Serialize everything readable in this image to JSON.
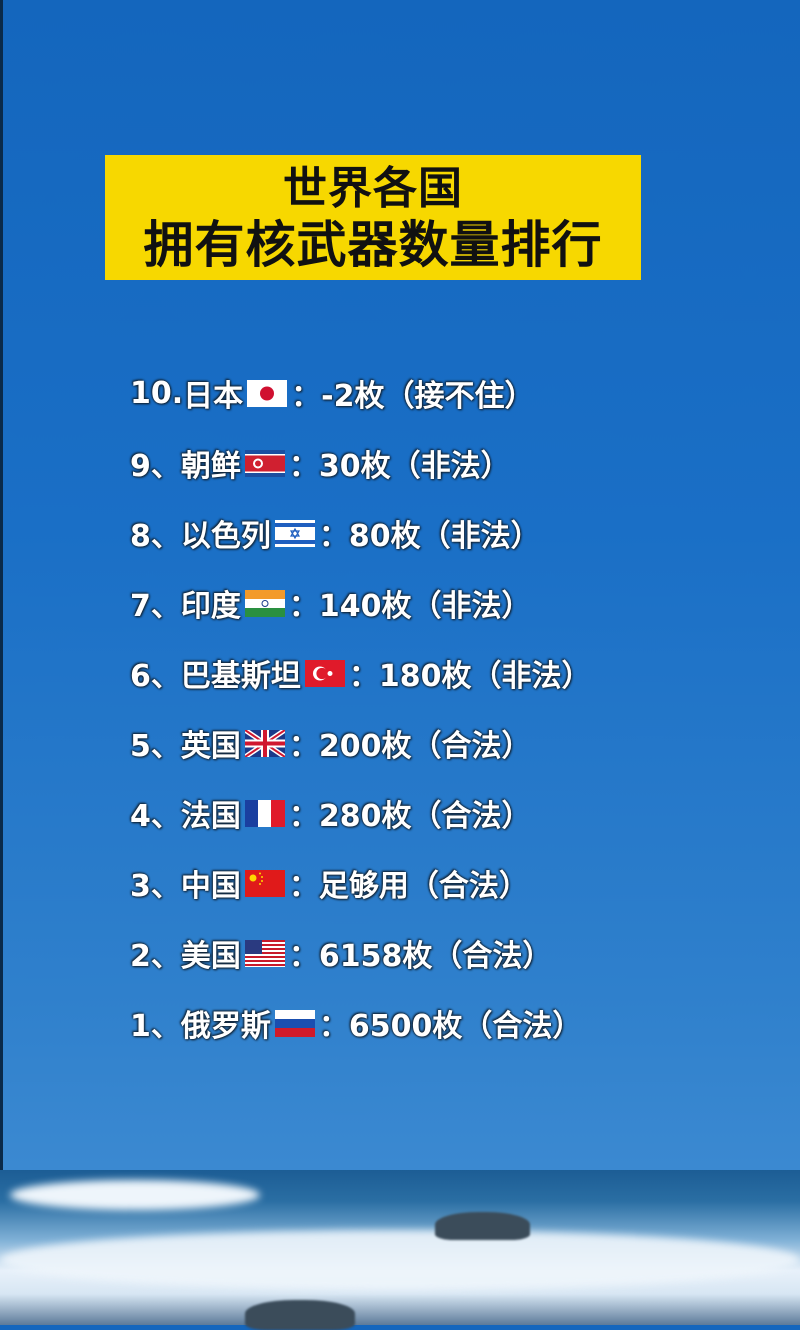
{
  "title": {
    "line1": "世界各国",
    "line2": "拥有核武器数量排行"
  },
  "colors": {
    "background": "#1a6fc6",
    "title_box": "#f7d800",
    "text": "#ffffff"
  },
  "rankings": [
    {
      "prefix": "10.",
      "country": "日本",
      "flag": "japan-flag",
      "value": "-2枚",
      "note": "（接不住）"
    },
    {
      "prefix": "9、",
      "country": "朝鲜",
      "flag": "north-korea-flag",
      "value": "30枚",
      "note": "（非法）"
    },
    {
      "prefix": "8、",
      "country": "以色列",
      "flag": "israel-flag",
      "value": "80枚",
      "note": "（非法）"
    },
    {
      "prefix": "7、",
      "country": "印度",
      "flag": "india-flag",
      "value": "140枚",
      "note": "（非法）"
    },
    {
      "prefix": "6、",
      "country": "巴基斯坦",
      "flag": "turkey-flag",
      "value": "180枚",
      "note": "（非法）"
    },
    {
      "prefix": "5、",
      "country": "英国",
      "flag": "uk-flag",
      "value": "200枚",
      "note": "（合法）"
    },
    {
      "prefix": "4、",
      "country": "法国",
      "flag": "france-flag",
      "value": "280枚",
      "note": "（合法）"
    },
    {
      "prefix": "3、",
      "country": "中国",
      "flag": "china-flag",
      "value": "足够用",
      "note": "（合法）"
    },
    {
      "prefix": "2、",
      "country": "美国",
      "flag": "usa-flag",
      "value": "6158枚",
      "note": "（合法）"
    },
    {
      "prefix": "1、",
      "country": "俄罗斯",
      "flag": "russia-flag",
      "value": "6500枚",
      "note": "（合法）"
    }
  ],
  "separator": "："
}
